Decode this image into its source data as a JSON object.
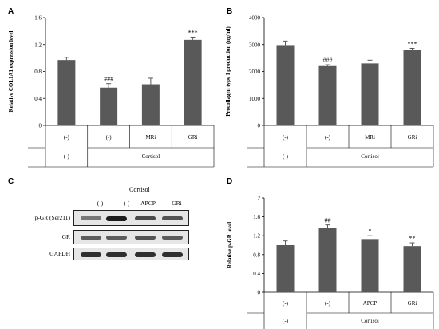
{
  "panels": {
    "A": "A",
    "B": "B",
    "C": "C",
    "D": "D"
  },
  "colors": {
    "bar": "#595959",
    "error": "#595959",
    "axis": "#000000"
  },
  "chart_data": [
    {
      "panel": "A",
      "type": "bar",
      "ylabel": "Relative COL1A1 expression level",
      "ylim": [
        0,
        1.6
      ],
      "yticks": [
        "0",
        "0.4",
        "0.8",
        "1.2",
        "1.6"
      ],
      "values": [
        0.97,
        0.56,
        0.61,
        1.27
      ],
      "errors": [
        0.04,
        0.06,
        0.09,
        0.04
      ],
      "annotations": [
        "",
        "###",
        "",
        "***"
      ],
      "row1": [
        "(-)",
        "(-)",
        "MRi",
        "GRi"
      ],
      "row2_first": "(-)",
      "row2_group": "Cortisol"
    },
    {
      "panel": "B",
      "type": "bar",
      "ylabel": "Procollagen type I production (ng/ml)",
      "ylim": [
        0,
        4000
      ],
      "yticks": [
        "0",
        "1000",
        "2000",
        "3000",
        "4000"
      ],
      "values": [
        2980,
        2200,
        2300,
        2800
      ],
      "errors": [
        150,
        50,
        120,
        60
      ],
      "annotations": [
        "",
        "###",
        "",
        "***"
      ],
      "row1": [
        "(-)",
        "(-)",
        "MRi",
        "GRi"
      ],
      "row2_first": "(-)",
      "row2_group": "Cortisol"
    },
    {
      "panel": "D",
      "type": "bar",
      "ylabel": "Relative p-GR level",
      "ylim": [
        0,
        2
      ],
      "yticks": [
        "0",
        "0.4",
        "0.8",
        "1.2",
        "1.6",
        "2"
      ],
      "values": [
        1.0,
        1.36,
        1.13,
        0.98
      ],
      "errors": [
        0.09,
        0.07,
        0.07,
        0.07
      ],
      "annotations": [
        "",
        "##",
        "*",
        "**"
      ],
      "row1": [
        "(-)",
        "(-)",
        "APCP",
        "GRi"
      ],
      "row2_first": "(-)",
      "row2_group": "Cortisol"
    }
  ],
  "western_blot": {
    "header_group": "Cortisol",
    "lanes": [
      "(-)",
      "(-)",
      "APCP",
      "GRi"
    ],
    "rows": [
      {
        "label": "p-GR (Ser211)",
        "intensity": [
          0.45,
          0.95,
          0.7,
          0.65
        ]
      },
      {
        "label": "GR",
        "intensity": [
          0.6,
          0.6,
          0.65,
          0.6
        ]
      },
      {
        "label": "GAPDH",
        "intensity": [
          0.85,
          0.85,
          0.85,
          0.85
        ]
      }
    ]
  }
}
